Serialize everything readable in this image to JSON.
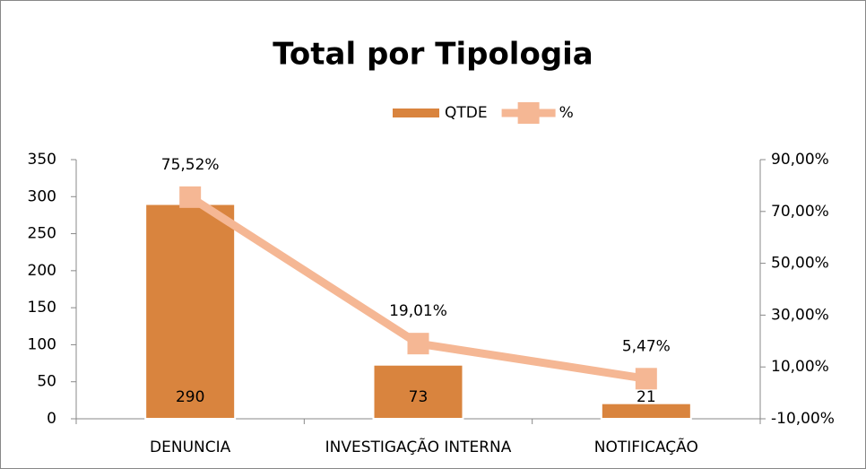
{
  "chart_data": {
    "type": "bar_line",
    "title": "Total por Tipologia",
    "categories": [
      "DENUNCIA",
      "INVESTIGAÇÃO INTERNA",
      "NOTIFICAÇÃO"
    ],
    "series": [
      {
        "name": "QTDE",
        "type": "bar",
        "color": "#d9843e",
        "values": [
          290,
          73,
          21
        ]
      },
      {
        "name": "%",
        "type": "line",
        "axis": "y2",
        "color": "#f5b794",
        "values": [
          75.52,
          19.01,
          5.47
        ],
        "value_labels": [
          "75,52%",
          "19,01%",
          "5,47%"
        ]
      }
    ],
    "ylim": [
      0,
      350
    ],
    "yticks": [
      0,
      50,
      100,
      150,
      200,
      250,
      300,
      350
    ],
    "y2lim": [
      -10,
      90
    ],
    "y2ticks": [
      {
        "value": -10,
        "label": "-10,00%"
      },
      {
        "value": 10,
        "label": "10,00%"
      },
      {
        "value": 30,
        "label": "30,00%"
      },
      {
        "value": 50,
        "label": "50,00%"
      },
      {
        "value": 70,
        "label": "70,00%"
      },
      {
        "value": 90,
        "label": "90,00%"
      }
    ],
    "legend": "top"
  }
}
